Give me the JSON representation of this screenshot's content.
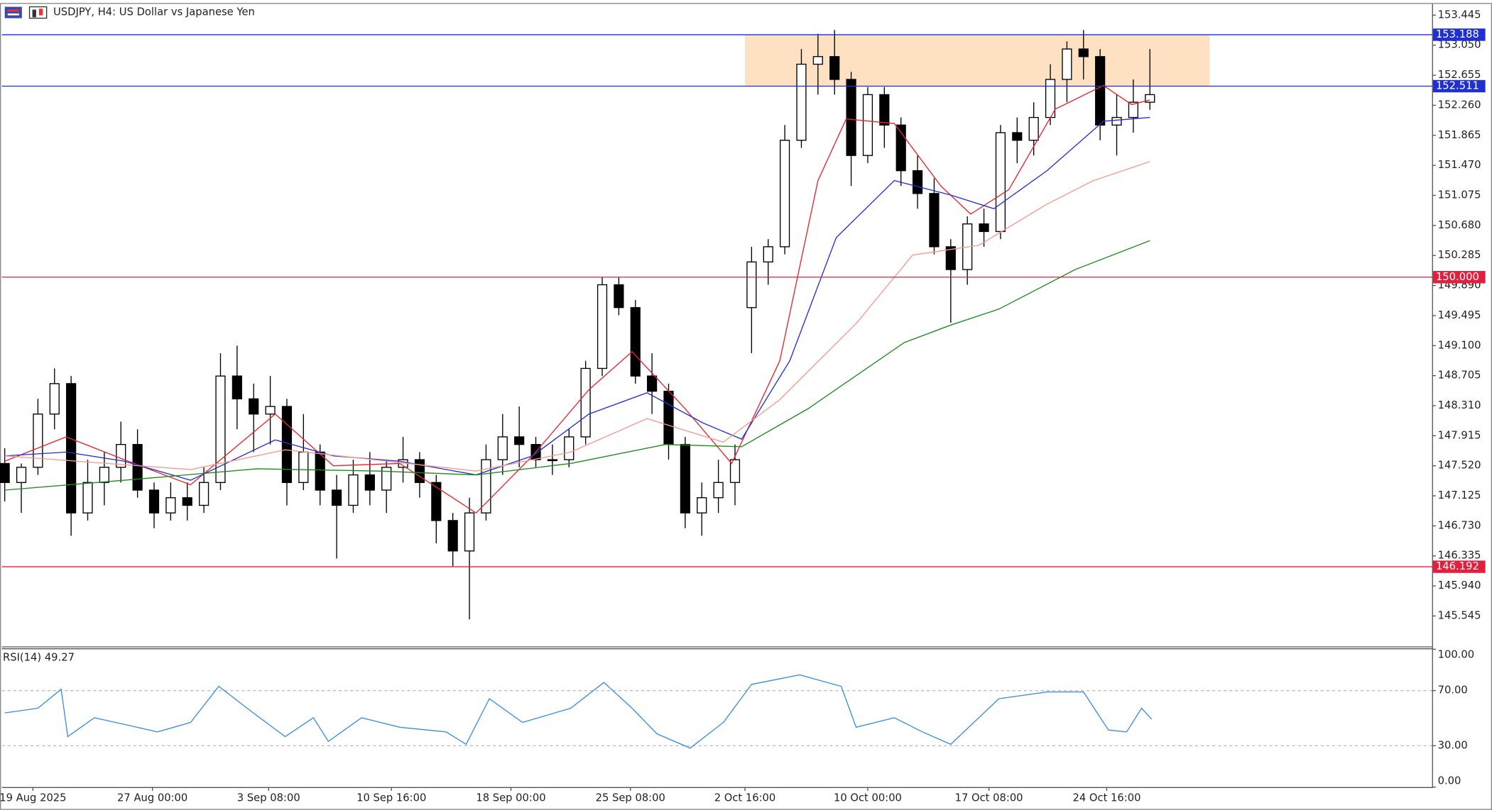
{
  "chart_data": [
    {
      "type": "candlestick",
      "title": "USDJPY, H4:  US Dollar vs Japanese Yen",
      "xlim": [
        -0.17,
        86
      ],
      "ylim": [
        145.17,
        153.58
      ],
      "open": [
        147.55,
        147.3,
        147.5,
        148.2,
        148.6,
        146.9,
        147.3,
        147.5,
        147.8,
        147.2,
        146.9,
        147.1,
        147.0,
        147.3,
        148.7,
        148.4,
        148.2,
        148.3,
        147.3,
        147.7,
        147.2,
        147.0,
        147.4,
        147.2,
        147.5,
        147.6,
        147.3,
        146.8,
        146.4,
        146.9,
        147.6,
        147.9,
        147.8,
        147.6,
        147.6,
        147.9,
        148.8,
        149.9,
        149.6,
        148.7,
        148.5,
        147.8,
        146.9,
        147.1,
        147.3,
        149.6,
        150.2,
        150.4,
        151.8,
        152.8,
        152.9,
        152.6,
        151.6,
        152.4,
        152.0,
        151.4,
        151.1,
        150.4,
        150.1,
        150.7,
        150.6,
        151.9,
        151.8,
        152.1,
        152.6,
        153.0,
        152.9,
        152.0,
        152.1,
        152.3
      ],
      "high": [
        147.75,
        147.55,
        148.4,
        148.8,
        148.7,
        147.6,
        147.7,
        148.1,
        148.0,
        147.3,
        147.3,
        147.3,
        147.5,
        149.0,
        149.1,
        148.6,
        148.7,
        148.4,
        148.2,
        147.8,
        147.4,
        147.6,
        147.7,
        147.6,
        147.9,
        147.7,
        147.4,
        146.9,
        147.1,
        147.8,
        148.2,
        148.3,
        147.9,
        147.8,
        148.0,
        148.9,
        150.0,
        150.0,
        149.7,
        149.0,
        148.6,
        147.9,
        147.3,
        147.6,
        147.8,
        150.4,
        150.5,
        152.0,
        153.0,
        153.2,
        153.25,
        152.7,
        152.5,
        152.5,
        152.1,
        151.6,
        151.3,
        150.5,
        150.8,
        150.9,
        152.0,
        152.1,
        152.3,
        152.8,
        153.1,
        153.25,
        153.0,
        152.4,
        152.6,
        153.0
      ],
      "low": [
        147.05,
        146.9,
        147.4,
        148.0,
        146.6,
        146.8,
        147.0,
        147.3,
        147.1,
        146.7,
        146.8,
        146.8,
        146.9,
        147.2,
        148.0,
        147.7,
        147.8,
        147.0,
        147.2,
        147.0,
        146.3,
        146.9,
        147.0,
        146.9,
        147.3,
        147.1,
        146.5,
        146.2,
        145.5,
        146.8,
        147.4,
        147.5,
        147.5,
        147.4,
        147.5,
        147.8,
        148.7,
        149.5,
        148.6,
        148.2,
        147.6,
        146.7,
        146.6,
        146.9,
        147.0,
        149.0,
        149.9,
        150.3,
        151.7,
        152.4,
        152.4,
        151.2,
        151.5,
        151.7,
        151.2,
        150.9,
        150.3,
        149.4,
        149.9,
        150.4,
        150.5,
        151.5,
        151.6,
        152.0,
        152.3,
        152.6,
        151.8,
        151.6,
        151.9,
        152.2
      ],
      "close": [
        147.3,
        147.5,
        148.2,
        148.6,
        146.9,
        147.3,
        147.5,
        147.8,
        147.2,
        146.9,
        147.1,
        147.0,
        147.3,
        148.7,
        148.4,
        148.2,
        148.3,
        147.3,
        147.7,
        147.2,
        147.0,
        147.4,
        147.2,
        147.5,
        147.6,
        147.3,
        146.8,
        146.4,
        146.9,
        147.6,
        147.9,
        147.8,
        147.6,
        147.6,
        147.9,
        148.8,
        149.9,
        149.6,
        148.7,
        148.5,
        147.8,
        146.9,
        147.1,
        147.3,
        147.6,
        150.2,
        150.4,
        151.8,
        152.8,
        152.9,
        152.6,
        151.6,
        152.4,
        152.0,
        151.4,
        151.1,
        150.4,
        150.1,
        150.7,
        150.6,
        151.9,
        151.8,
        152.1,
        152.6,
        153.0,
        152.9,
        152.0,
        152.1,
        152.3,
        152.4
      ],
      "lines": [
        {
          "color": "#e8232b",
          "x": [
            0,
            3.7,
            7.2,
            11.2,
            16.3,
            19.8,
            23.8,
            28.4,
            31.8,
            35.2,
            37.8,
            41.0,
            43.8,
            46.7,
            49.0,
            50.7,
            53.6,
            56.4,
            58.2,
            60.5,
            63.3,
            66.2,
            67.9,
            69
          ],
          "values": [
            147.58,
            147.9,
            147.6,
            147.27,
            148.2,
            147.52,
            147.55,
            146.9,
            147.65,
            148.52,
            149.02,
            148.27,
            147.55,
            148.9,
            151.27,
            152.08,
            152.02,
            151.2,
            150.83,
            151.15,
            152.21,
            152.52,
            152.27,
            152.33
          ]
        },
        {
          "color": "#2330d8",
          "x": [
            0,
            3.7,
            7.2,
            11.2,
            16.3,
            19.8,
            23.8,
            28.4,
            31.8,
            35.2,
            38.7,
            42.1,
            44.4,
            47.3,
            50.1,
            53.6,
            57.0,
            59.6,
            62.8,
            66.2,
            69
          ],
          "values": [
            147.65,
            147.7,
            147.58,
            147.33,
            147.86,
            147.65,
            147.58,
            147.4,
            147.65,
            148.2,
            148.48,
            148.08,
            147.87,
            148.9,
            150.52,
            151.27,
            151.08,
            150.9,
            151.4,
            152.05,
            152.1
          ]
        },
        {
          "color": "#f59a8c",
          "x": [
            0,
            11.2,
            16.9,
            28.4,
            34.1,
            38.7,
            43.3,
            46.7,
            51.3,
            54.7,
            58.7,
            62.8,
            65.6,
            69
          ],
          "values": [
            147.65,
            147.47,
            147.73,
            147.45,
            147.7,
            148.14,
            147.83,
            148.39,
            149.39,
            150.29,
            150.42,
            150.96,
            151.27,
            151.52
          ]
        },
        {
          "color": "#1e8a1e",
          "x": [
            0,
            7.2,
            15.2,
            22.6,
            28.4,
            34.1,
            39.8,
            44.4,
            48.4,
            54.2,
            57.0,
            59.9,
            64.5,
            69
          ],
          "values": [
            147.2,
            147.33,
            147.48,
            147.45,
            147.4,
            147.55,
            147.8,
            147.77,
            148.27,
            149.14,
            149.37,
            149.58,
            150.1,
            150.48
          ]
        }
      ],
      "zone": {
        "from": 152.511,
        "to": 153.188,
        "x": [
          44.6,
          72.6
        ],
        "color": "#fde1c2"
      },
      "hlines": [
        {
          "value": 153.188,
          "color": "#1f2fd0"
        },
        {
          "value": 152.511,
          "color": "#1f2fd0"
        },
        {
          "value": 150,
          "label": "150.000",
          "color": "#e0203c"
        },
        {
          "value": 146.192,
          "color": "#e0203c"
        }
      ],
      "yticks": [
        153.445,
        {
          "value": 153.05,
          "label": "153.050"
        },
        152.655,
        {
          "value": 152.26,
          "label": "152.260"
        },
        151.865,
        {
          "value": 151.47,
          "label": "151.470"
        },
        151.075,
        {
          "value": 150.68,
          "label": "150.680"
        },
        150.285,
        {
          "value": 149.89,
          "label": "149.890"
        },
        149.495,
        {
          "value": 149.1,
          "label": "149.100"
        },
        148.705,
        {
          "value": 148.31,
          "label": "148.310"
        },
        147.915,
        {
          "value": 147.52,
          "label": "147.520"
        },
        147.125,
        {
          "value": 146.73,
          "label": "146.730"
        },
        146.335,
        {
          "value": 145.94,
          "label": "145.940"
        },
        145.545
      ]
    },
    {
      "type": "line",
      "title": "RSI(14) 49.27",
      "color": "#3a8ee6",
      "xlim": [
        -0.17,
        86
      ],
      "ylim": [
        0,
        100
      ],
      "x": [
        0,
        2.0,
        3.4,
        3.8,
        5.4,
        7.2,
        9.2,
        11.2,
        12.9,
        14.6,
        16.9,
        18.6,
        19.5,
        21.5,
        23.8,
        26.6,
        27.8,
        29.2,
        31.2,
        34.1,
        36.1,
        37.8,
        39.3,
        41.3,
        43.3,
        45.0,
        47.9,
        50.4,
        51.3,
        53.6,
        55.3,
        57.0,
        59.9,
        62.8,
        65.0,
        66.5,
        67.6,
        68.5,
        69.1
      ],
      "values": [
        53.8,
        57.2,
        71,
        36.6,
        50.3,
        45.5,
        40,
        46.9,
        73.1,
        57.2,
        36.6,
        50.3,
        33.1,
        50.3,
        43.4,
        40,
        31,
        64.1,
        46.9,
        57.2,
        75.9,
        57.2,
        38.6,
        28.3,
        46.9,
        74.5,
        81.4,
        73.1,
        43.4,
        50.3,
        40,
        31,
        64.1,
        69,
        69,
        41.4,
        40,
        57.2,
        49.27
      ],
      "yticks": [
        {
          "value": 100,
          "label": "100.00"
        },
        {
          "value": 70,
          "label": "70.00"
        },
        {
          "value": 30,
          "label": "30.00"
        },
        {
          "value": 0,
          "label": "0.00"
        }
      ],
      "xticks": [
        {
          "value": 1.7,
          "label": "19 Aug 2025"
        },
        {
          "value": 8.9,
          "label": "27 Aug 00:00"
        },
        {
          "value": 15.9,
          "label": "3 Sep 08:00"
        },
        {
          "value": 23.3,
          "label": "10 Sep 16:00"
        },
        {
          "value": 30.5,
          "label": "18 Sep 00:00"
        },
        {
          "value": 37.7,
          "label": "25 Sep 08:00"
        },
        {
          "value": 44.6,
          "label": "2 Oct 16:00"
        },
        {
          "value": 52.0,
          "label": "10 Oct 00:00"
        },
        {
          "value": 59.3,
          "label": "17 Oct 08:00"
        },
        {
          "value": 66.4,
          "label": "24 Oct 16:00"
        }
      ]
    }
  ]
}
